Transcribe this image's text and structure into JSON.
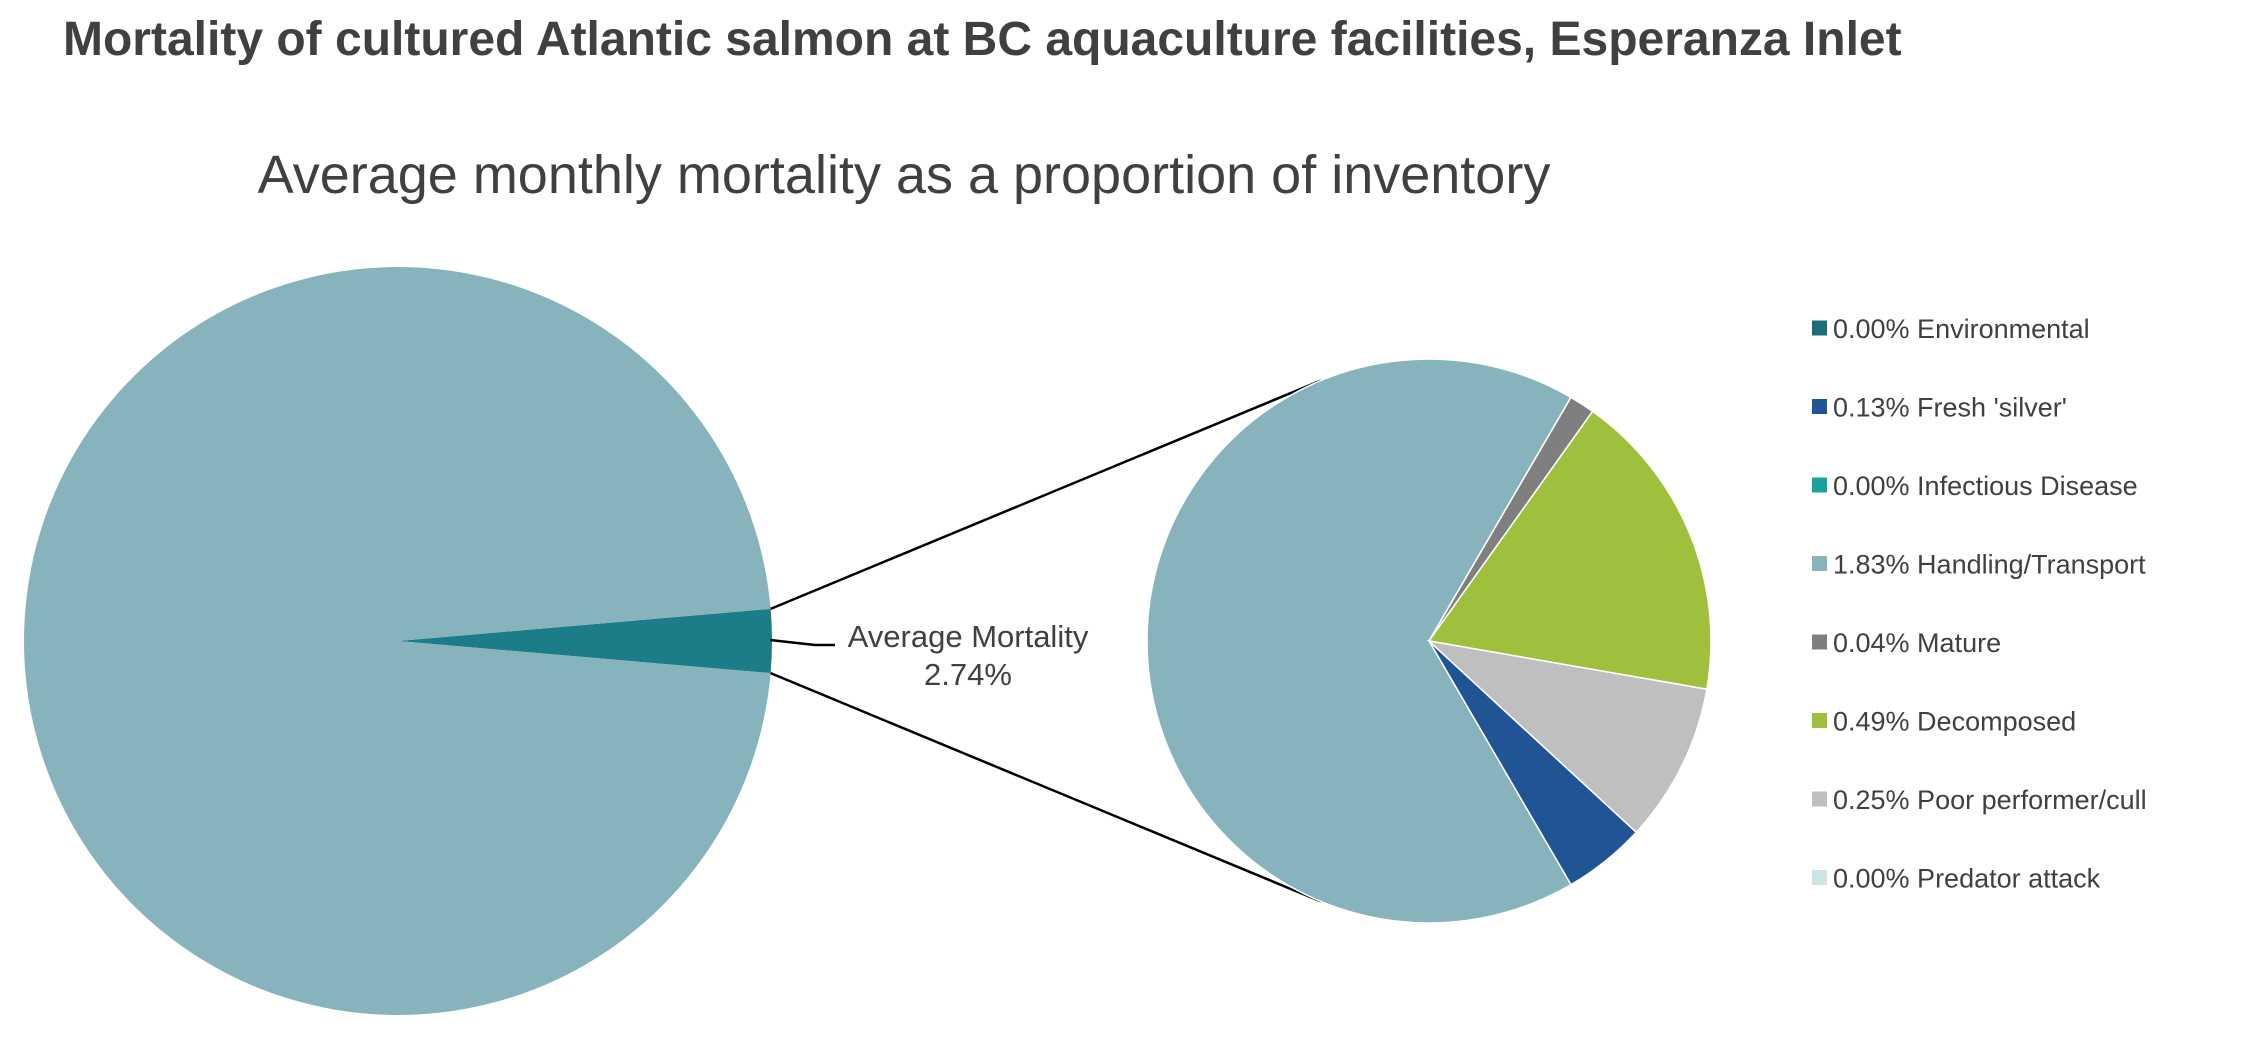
{
  "page_title": "Mortality of cultured Atlantic salmon at BC aquaculture facilities, Esperanza Inlet",
  "chart_data": {
    "type": "pie",
    "subtype": "pie-of-pie",
    "title": "Average monthly mortality as a proportion of inventory",
    "main_pie": {
      "slices": [
        {
          "label": "Average Mortality",
          "value": 2.74,
          "value_label": "2.74%",
          "color": "#1c7c88"
        },
        {
          "label": "",
          "value": 97.26,
          "color": "#87b4bc"
        }
      ]
    },
    "callout": {
      "label": "Average Mortality",
      "value_label": "2.74%"
    },
    "secondary_pie": {
      "slices": [
        {
          "label": "Environmental",
          "value": 0.0,
          "value_label": "0.00%",
          "color": "#1c6e78"
        },
        {
          "label": "Fresh 'silver'",
          "value": 0.13,
          "value_label": "0.13%",
          "color": "#215495"
        },
        {
          "label": "Infectious Disease",
          "value": 0.0,
          "value_label": "0.00%",
          "color": "#1aa39d"
        },
        {
          "label": "Handling/Transport",
          "value": 1.83,
          "value_label": "1.83%",
          "color": "#87b4bc"
        },
        {
          "label": "Mature",
          "value": 0.04,
          "value_label": "0.04%",
          "color": "#7f7f7f"
        },
        {
          "label": "Decomposed",
          "value": 0.49,
          "value_label": "0.49%",
          "color": "#9fc03d"
        },
        {
          "label": "Poor performer/cull",
          "value": 0.25,
          "value_label": "0.25%",
          "color": "#bfbfbf"
        },
        {
          "label": "Predator attack",
          "value": 0.0,
          "value_label": "0.00%",
          "color": "#cde5e5"
        }
      ]
    },
    "legend": {
      "placement": "right",
      "entries": [
        {
          "text": "0.00% Environmental",
          "color": "#1c6e78"
        },
        {
          "text": "0.13% Fresh 'silver'",
          "color": "#215495"
        },
        {
          "text": "0.00% Infectious Disease",
          "color": "#1aa39d"
        },
        {
          "text": "1.83% Handling/Transport",
          "color": "#87b4bc"
        },
        {
          "text": "0.04% Mature",
          "color": "#7f7f7f"
        },
        {
          "text": "0.49% Decomposed",
          "color": "#9fc03d"
        },
        {
          "text": "0.25% Poor performer/cull",
          "color": "#bfbfbf"
        },
        {
          "text": "0.00% Predator attack",
          "color": "#cde5e5"
        }
      ]
    }
  }
}
